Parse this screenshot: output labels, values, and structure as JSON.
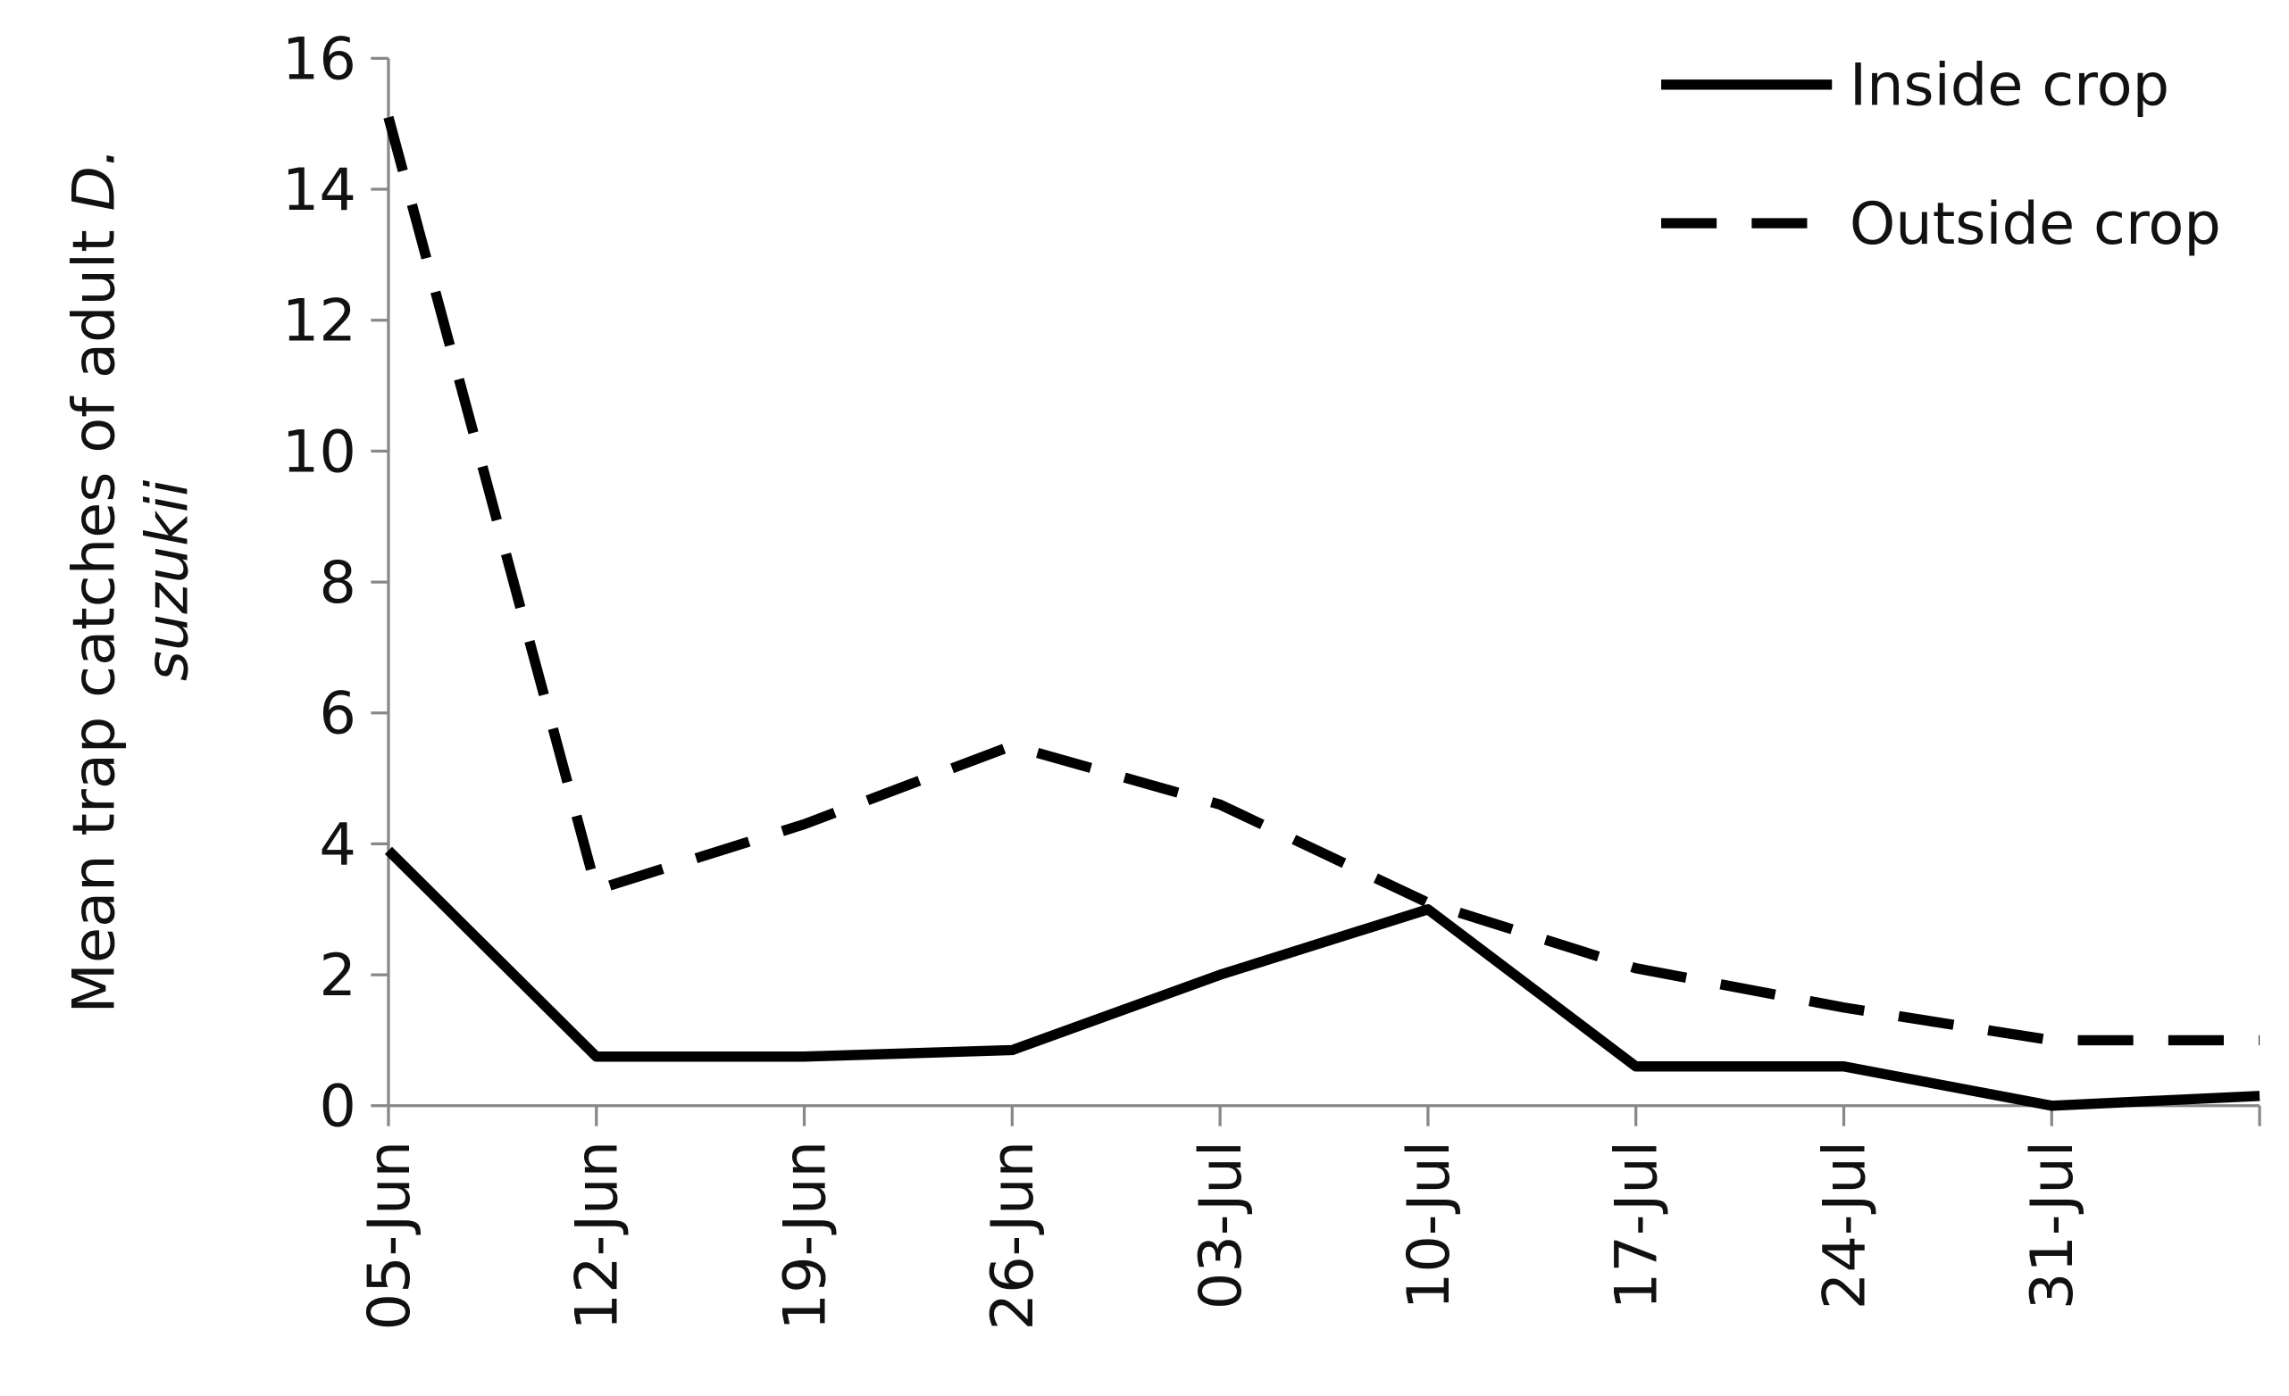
{
  "chart_data": {
    "type": "line",
    "ylabel": {
      "text": "Mean trap catches of adult",
      "italic": "D.",
      "line2": "suzukii"
    },
    "categories": [
      "05-Jun",
      "12-Jun",
      "19-Jun",
      "26-Jun",
      "03-Jul",
      "10-Jul",
      "17-Jul",
      "24-Jul",
      "31-Jul",
      null
    ],
    "series": [
      {
        "name": "Inside crop",
        "color": "#000000",
        "dash": "solid",
        "values": [
          3.9,
          0.75,
          0.75,
          0.85,
          2.0,
          3.0,
          0.6,
          0.6,
          0.0,
          0.15
        ]
      },
      {
        "name": "Outside crop",
        "color": "#000000",
        "dash": "dashed",
        "values": [
          15.1,
          3.3,
          4.3,
          5.5,
          4.6,
          3.1,
          2.1,
          1.5,
          1.0,
          1.0
        ]
      }
    ],
    "ylim": [
      0,
      16
    ],
    "yticks": [
      0,
      2,
      4,
      6,
      8,
      10,
      12,
      14,
      16
    ],
    "grid": false,
    "legend": "top-right"
  }
}
